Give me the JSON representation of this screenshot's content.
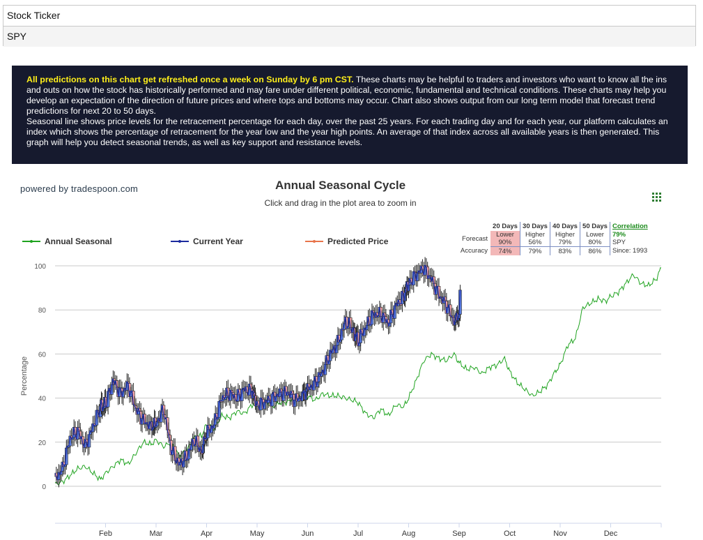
{
  "ticker": {
    "label": "Stock Ticker",
    "value": "SPY"
  },
  "notice": {
    "highlight": "All predictions on this chart get refreshed once a week on Sunday by 6 pm CST.",
    "text1": " These charts may be helpful to traders and investors who want to know all the ins and outs on how the stock has historically performed and may fare under different political, economic, fundamental and technical conditions. These charts may help you develop an expectation of the direction of future prices and where tops and bottoms may occur. Chart also shows output from our long term model that forecast trend predictions for next 20 to 50 days.",
    "text2": "Seasonal line shows price levels for the retracement percentage for each day, over the past 25 years. For each trading day and for each year, our platform calculates an index which shows the percentage of retracement for the year low and the year high points. An average of that index across all available years is then generated. This graph will help you detect seasonal trends, as well as key support and resistance levels."
  },
  "powered_by": "powered by tradespoon.com",
  "chart_data": {
    "type": "line",
    "title": "Annual Seasonal Cycle",
    "subtitle": "Click and drag in the plot area to zoom in",
    "ylabel": "Percentage",
    "xlabel": "",
    "ylim": [
      0,
      100
    ],
    "yticks": [
      "0",
      "20",
      "40",
      "60",
      "80",
      "100"
    ],
    "x_month_labels": [
      "Feb",
      "Mar",
      "Apr",
      "May",
      "Jun",
      "Jul",
      "Aug",
      "Sep",
      "Oct",
      "Nov",
      "Dec"
    ],
    "x_month_positions": [
      2,
      3,
      4,
      5,
      6,
      7,
      8,
      9,
      10,
      11,
      12
    ],
    "x_domain": [
      1,
      13
    ],
    "grid": true,
    "legend_position": "top-left",
    "series": [
      {
        "name": "Annual Seasonal",
        "color": "#1fa31f",
        "style": "line",
        "x": [
          1.0,
          1.15,
          1.3,
          1.45,
          1.6,
          1.75,
          1.9,
          2.0,
          2.15,
          2.3,
          2.45,
          2.6,
          2.75,
          2.9,
          3.0,
          3.15,
          3.3,
          3.45,
          3.6,
          3.75,
          3.9,
          4.0,
          4.15,
          4.3,
          4.45,
          4.6,
          4.75,
          4.9,
          5.0,
          5.15,
          5.3,
          5.45,
          5.6,
          5.75,
          5.9,
          6.0,
          6.15,
          6.3,
          6.45,
          6.6,
          6.75,
          6.9,
          7.0,
          7.15,
          7.3,
          7.45,
          7.6,
          7.75,
          7.9,
          8.0,
          8.15,
          8.3,
          8.45,
          8.6,
          8.75,
          8.9,
          9.0,
          9.15,
          9.3,
          9.45,
          9.6,
          9.75,
          9.9,
          10.0,
          10.15,
          10.3,
          10.45,
          10.6,
          10.75,
          10.9,
          11.0,
          11.15,
          11.3,
          11.45,
          11.6,
          11.75,
          11.9,
          12.0,
          12.15,
          12.3,
          12.45,
          12.6,
          12.75,
          12.9,
          13.0
        ],
        "y": [
          1,
          2,
          5,
          8,
          9,
          6,
          3,
          6,
          9,
          12,
          10,
          15,
          20,
          19,
          21,
          18,
          20,
          14,
          16,
          22,
          23,
          28,
          26,
          32,
          31,
          34,
          33,
          37,
          38,
          39,
          36,
          38,
          38,
          41,
          40,
          41,
          39,
          42,
          41,
          41,
          40,
          39,
          38,
          33,
          31,
          35,
          32,
          37,
          36,
          40,
          48,
          57,
          60,
          58,
          57,
          60,
          56,
          53,
          54,
          51,
          54,
          55,
          58,
          52,
          47,
          44,
          41,
          43,
          46,
          52,
          55,
          64,
          67,
          81,
          83,
          85,
          84,
          86,
          88,
          92,
          96,
          92,
          91,
          94,
          99
        ]
      },
      {
        "name": "Current Year",
        "color": "#1b2a9e",
        "style": "candlestick",
        "x": [
          1.0,
          1.15,
          1.3,
          1.45,
          1.6,
          1.75,
          1.9,
          2.0,
          2.15,
          2.3,
          2.45,
          2.6,
          2.75,
          2.9,
          3.0,
          3.15,
          3.3,
          3.45,
          3.6,
          3.75,
          3.9,
          4.0,
          4.15,
          4.3,
          4.45,
          4.6,
          4.75,
          4.9,
          5.0,
          5.15,
          5.3,
          5.45,
          5.6,
          5.75,
          5.9,
          6.0,
          6.15,
          6.3,
          6.45,
          6.6,
          6.75,
          6.9,
          7.0,
          7.15,
          7.3,
          7.45,
          7.6,
          7.75,
          7.9,
          8.0,
          8.15,
          8.3,
          8.45,
          8.6,
          8.75,
          8.9,
          9.0
        ],
        "y": [
          3,
          8,
          22,
          25,
          18,
          27,
          36,
          37,
          48,
          42,
          46,
          35,
          30,
          27,
          28,
          35,
          17,
          10,
          13,
          21,
          16,
          24,
          28,
          40,
          42,
          40,
          44,
          43,
          37,
          38,
          40,
          42,
          43,
          39,
          41,
          44,
          47,
          52,
          60,
          65,
          75,
          71,
          66,
          72,
          78,
          78,
          74,
          82,
          86,
          92,
          96,
          99,
          94,
          87,
          82,
          75,
          78
        ],
        "y_end": 89
      },
      {
        "name": "Predicted Price",
        "color": "#e8744a",
        "style": "line",
        "x": [],
        "y": []
      }
    ]
  },
  "forecast": {
    "headers": [
      "20 Days",
      "30 Days",
      "40 Days",
      "50 Days"
    ],
    "row_forecast_label": "Forecast",
    "directions": [
      "Lower",
      "Higher",
      "Higher",
      "Lower"
    ],
    "probabilities": [
      "90%",
      "56%",
      "79%",
      "80%"
    ],
    "row_accuracy_label": "Accuracy",
    "accuracy": [
      "74%",
      "79%",
      "83%",
      "86%"
    ],
    "highlight_color": "#f3b8b8",
    "correlation_label": "Correlation",
    "correlation_value": "79%",
    "correlation_symbol": "SPY",
    "correlation_since": "Since: 1993"
  }
}
